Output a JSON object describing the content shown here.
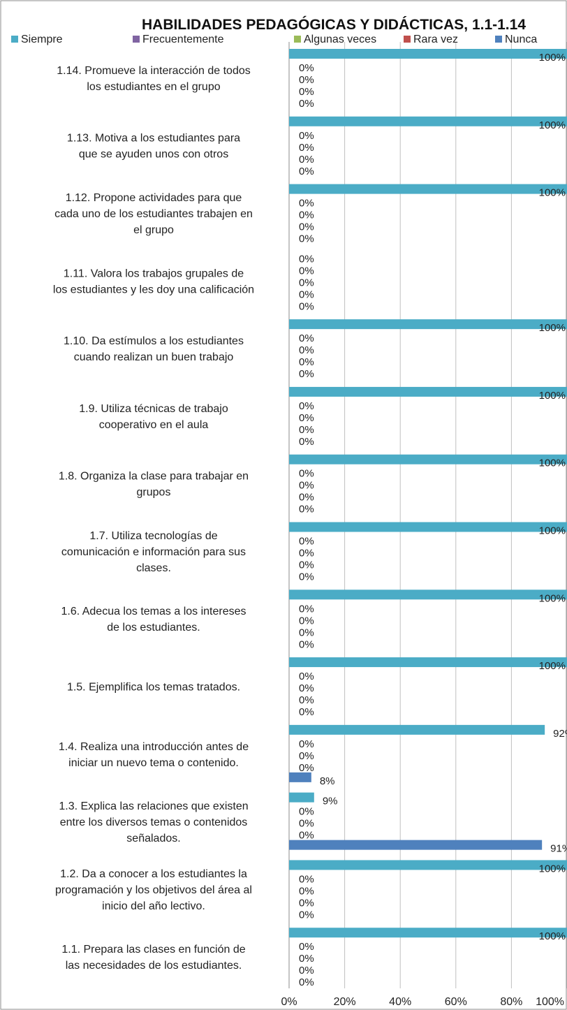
{
  "chart_data": {
    "type": "bar",
    "orientation": "horizontal",
    "title": "HABILIDADES PEDAGÓGICAS Y DIDÁCTICAS, 1.1-1.14",
    "xlabel": "",
    "ylabel": "",
    "xlim": [
      0,
      100
    ],
    "x_ticks": [
      "0%",
      "20%",
      "40%",
      "60%",
      "80%",
      "100%"
    ],
    "grid": true,
    "legend_position": "top",
    "series": [
      {
        "name": "Siempre",
        "color": "#4BACC6",
        "values": [
          100,
          100,
          9,
          92,
          100,
          100,
          100,
          100,
          100,
          100,
          0,
          100,
          100,
          100
        ]
      },
      {
        "name": "Frecuentemente",
        "color": "#8064A2",
        "values": [
          0,
          0,
          0,
          0,
          0,
          0,
          0,
          0,
          0,
          0,
          0,
          0,
          0,
          0
        ]
      },
      {
        "name": "Algunas veces",
        "color": "#9BBB59",
        "values": [
          0,
          0,
          0,
          0,
          0,
          0,
          0,
          0,
          0,
          0,
          0,
          0,
          0,
          0
        ]
      },
      {
        "name": "Rara vez",
        "color": "#C0504D",
        "values": [
          0,
          0,
          0,
          0,
          0,
          0,
          0,
          0,
          0,
          0,
          0,
          0,
          0,
          0
        ]
      },
      {
        "name": "Nunca",
        "color": "#4F81BD",
        "values": [
          0,
          0,
          91,
          8,
          0,
          0,
          0,
          0,
          0,
          0,
          0,
          0,
          0,
          0
        ]
      }
    ],
    "categories": [
      [
        "1.1.     Prepara las clases en función de",
        "las necesidades de los estudiantes."
      ],
      [
        "1.2. Da a conocer a los estudiantes la",
        "programación y los objetivos del área al",
        "inicio del año lectivo."
      ],
      [
        "1.3.  Explica las relaciones que existen",
        "entre los diversos temas o contenidos",
        "señalados."
      ],
      [
        "1.4.  Realiza una introducción antes de",
        "iniciar un nuevo tema o contenido."
      ],
      [
        "1.5.     Ejemplifica los temas tratados."
      ],
      [
        "1.6.     Adecua los temas a los intereses",
        "de los estudiantes."
      ],
      [
        "1.7.   Utiliza tecnologías de",
        "comunicación e información para sus",
        "clases."
      ],
      [
        "1.8.  Organiza la clase para trabajar en",
        "grupos"
      ],
      [
        "1.9.  Utiliza técnicas de trabajo",
        "cooperativo en el aula"
      ],
      [
        "1.10.  Da estímulos a los estudiantes",
        "cuando realizan un buen trabajo"
      ],
      [
        "1.11.  Valora los trabajos grupales de",
        "los estudiantes y les doy una calificación"
      ],
      [
        "1.12.  Propone actividades para  que",
        "cada uno de los estudiantes trabajen en",
        "el grupo"
      ],
      [
        "1.13.   Motiva  a los estudiantes para",
        "que se ayuden unos     con otros"
      ],
      [
        "1.14.  Promueve la interacción de todos",
        "los estudiantes en el grupo"
      ]
    ]
  }
}
